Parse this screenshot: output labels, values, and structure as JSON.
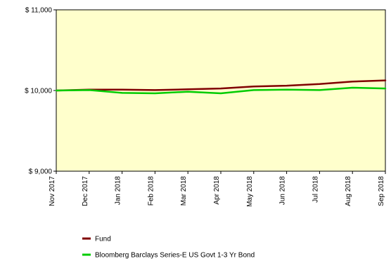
{
  "chart_data": {
    "type": "line",
    "title": "",
    "xlabel": "",
    "ylabel": "",
    "categories": [
      "Nov 2017",
      "Dec 2017",
      "Jan 2018",
      "Feb 2018",
      "Mar 2018",
      "Apr 2018",
      "May 2018",
      "Jun 2018",
      "Jul 2018",
      "Aug 2018",
      "Sep 2018"
    ],
    "ylim": [
      9000,
      11000
    ],
    "yticks": [
      9000,
      10000,
      11000
    ],
    "ytick_labels": [
      "$ 9,000",
      "$ 10,000",
      "$ 11,000"
    ],
    "grid": false,
    "legend_position": "bottom-left",
    "plot_background": "#ffffcc",
    "series": [
      {
        "name": "Fund",
        "color": "#800000",
        "values": [
          10000,
          10010,
          10010,
          10005,
          10015,
          10025,
          10050,
          10060,
          10080,
          10110,
          10125
        ]
      },
      {
        "name": "Bloomberg Barclays Series-E US Govt 1-3 Yr Bond",
        "color": "#00cc00",
        "values": [
          10000,
          10005,
          9970,
          9965,
          9985,
          9965,
          10005,
          10010,
          10005,
          10035,
          10025
        ]
      }
    ]
  }
}
